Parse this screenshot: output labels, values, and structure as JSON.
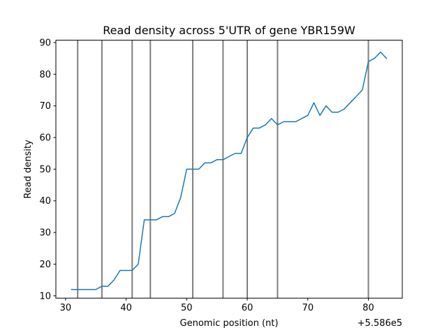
{
  "chart_data": {
    "type": "line",
    "title": "Read density across 5'UTR of gene YBR159W",
    "xlabel": "Genomic position (nt)",
    "ylabel": "Read density",
    "x_offset_label": "+5.586e5",
    "xlim": [
      558628.4,
      558685.6
    ],
    "ylim": [
      9.25,
      90.75
    ],
    "x_ticks": [
      558630,
      558640,
      558650,
      558660,
      558670,
      558680
    ],
    "x_tick_labels": [
      "30",
      "40",
      "50",
      "60",
      "70",
      "80"
    ],
    "y_ticks": [
      10,
      20,
      30,
      40,
      50,
      60,
      70,
      80,
      90
    ],
    "y_tick_labels": [
      "10",
      "20",
      "30",
      "40",
      "50",
      "60",
      "70",
      "80",
      "90"
    ],
    "grid": false,
    "series": [
      {
        "color": "#1f77b4",
        "x": [
          558631,
          558632,
          558633,
          558634,
          558635,
          558636,
          558637,
          558638,
          558639,
          558640,
          558641,
          558642,
          558643,
          558644,
          558645,
          558646,
          558647,
          558648,
          558649,
          558650,
          558651,
          558652,
          558653,
          558654,
          558655,
          558656,
          558657,
          558658,
          558659,
          558660,
          558661,
          558662,
          558663,
          558664,
          558665,
          558666,
          558667,
          558668,
          558669,
          558670,
          558671,
          558672,
          558673,
          558674,
          558675,
          558676,
          558677,
          558678,
          558679,
          558680,
          558681,
          558682,
          558683
        ],
        "y": [
          12,
          12,
          12,
          12,
          12,
          13,
          13,
          15,
          18,
          18,
          18,
          20,
          34,
          34,
          34,
          35,
          35,
          36,
          41,
          50,
          50,
          50,
          52,
          52,
          53,
          53,
          54,
          55,
          55,
          60,
          63,
          63,
          64,
          66,
          64,
          65,
          65,
          65,
          66,
          67,
          71,
          67,
          70,
          68,
          68,
          69,
          71,
          73,
          75,
          84,
          85,
          87,
          85
        ]
      }
    ],
    "vertical_lines": {
      "color": "#7f7f7f",
      "x": [
        558632,
        558636,
        558641,
        558644,
        558651,
        558656,
        558660,
        558665,
        558680
      ]
    }
  }
}
